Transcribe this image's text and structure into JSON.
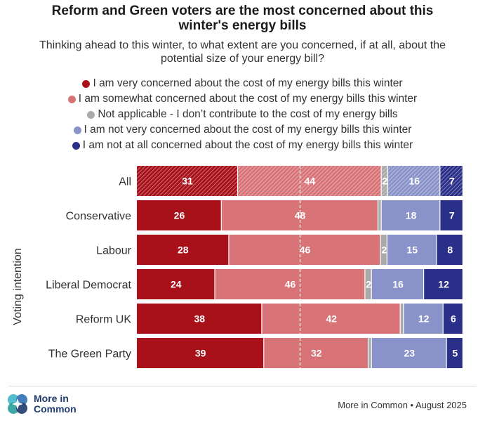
{
  "title_line1": "Reform and Green voters are the most concerned about this",
  "title_line2": "winter's energy bills",
  "subtitle_line1": "Thinking ahead to this winter, to what extent are you concerned, if at all, about the",
  "subtitle_line2": "potential size of your energy bill?",
  "footer": {
    "brand_line1": "More in",
    "brand_line2": "Common",
    "source": "More in Common • August 2025"
  },
  "colors": {
    "very_concerned": "#a8101a",
    "somewhat_concerned": "#d87377",
    "not_applicable": "#aaaaaa",
    "not_very_concerned": "#8a93c9",
    "not_at_all_concerned": "#2a2f8a"
  },
  "chart_data": {
    "type": "bar",
    "orientation": "horizontal",
    "stacked": true,
    "ylabel": "Voting intention",
    "categories": [
      "All",
      "Conservative",
      "Labour",
      "Liberal Democrat",
      "Reform UK",
      "The Green Party"
    ],
    "series": [
      {
        "name": "I am very concerned about the cost of my energy bills this winter",
        "color": "#a8101a",
        "values": [
          31,
          26,
          28,
          24,
          38,
          39
        ]
      },
      {
        "name": "I am somewhat concerned about the cost of my energy bills this winter",
        "color": "#d87377",
        "values": [
          44,
          48,
          46,
          46,
          42,
          32
        ]
      },
      {
        "name": "Not applicable - I don’t contribute to the cost of my energy bills",
        "color": "#aaaaaa",
        "values": [
          2,
          1,
          2,
          2,
          1,
          1
        ]
      },
      {
        "name": "I am not very concerned about the cost of my energy bills this winter",
        "color": "#8a93c9",
        "values": [
          16,
          18,
          15,
          16,
          12,
          23
        ]
      },
      {
        "name": "I am not at all concerned about the cost of my energy bills this winter",
        "color": "#2a2f8a",
        "values": [
          7,
          7,
          8,
          12,
          6,
          5
        ]
      }
    ],
    "data_labels": [
      [
        "31",
        "44",
        "2",
        "16",
        "7"
      ],
      [
        "26",
        "48",
        "",
        "18",
        "7"
      ],
      [
        "28",
        "46",
        "2",
        "15",
        "8"
      ],
      [
        "24",
        "46",
        "2",
        "16",
        "12"
      ],
      [
        "38",
        "42",
        "",
        "12",
        "6"
      ],
      [
        "39",
        "32",
        "",
        "23",
        "5"
      ]
    ],
    "hatched_rows": [
      "All"
    ],
    "reference_line": 50,
    "legend_position": "top"
  }
}
